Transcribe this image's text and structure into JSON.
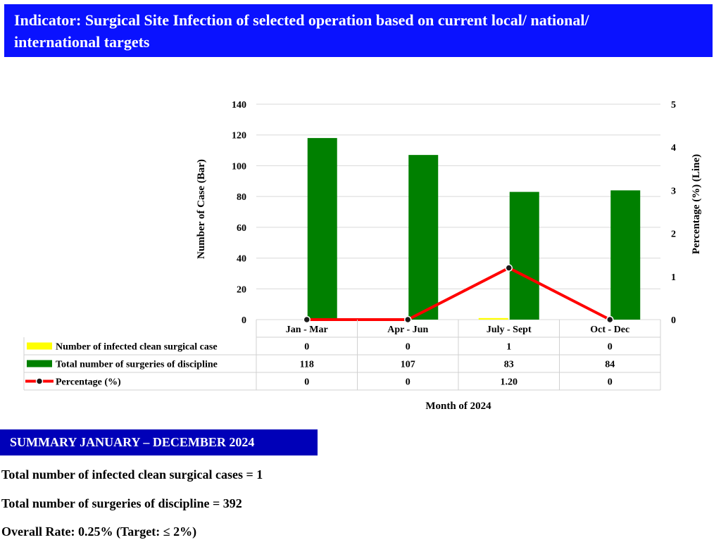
{
  "header": {
    "title_line1": "Indicator: Surgical Site Infection of selected operation based on current local/ national/",
    "title_line2": "international targets"
  },
  "chart_data": {
    "type": "bar",
    "categories": [
      "Jan - Mar",
      "Apr - Jun",
      "July - Sept",
      "Oct - Dec"
    ],
    "series": [
      {
        "name": "Number of infected clean surgical case",
        "kind": "bar",
        "axis": "left",
        "color": "#ffff00",
        "values": [
          0,
          0,
          1,
          0
        ],
        "labels": [
          "0",
          "0",
          "1",
          "0"
        ]
      },
      {
        "name": "Total number of surgeries of discipline",
        "kind": "bar",
        "axis": "left",
        "color": "#008000",
        "values": [
          118,
          107,
          83,
          84
        ],
        "labels": [
          "118",
          "107",
          "83",
          "84"
        ]
      },
      {
        "name": "Percentage (%)",
        "kind": "line",
        "axis": "right",
        "color": "#ff0000",
        "values": [
          0,
          0,
          1.2,
          0
        ],
        "labels": [
          "0",
          "0",
          "1.20",
          "0"
        ]
      }
    ],
    "y_left": {
      "label": "Number of Case (Bar)",
      "min": 0,
      "max": 140,
      "ticks": [
        0,
        20,
        40,
        60,
        80,
        100,
        120,
        140
      ]
    },
    "y_right": {
      "label": "Percentage (%) (Line)",
      "min": 0,
      "max": 5,
      "ticks": [
        0,
        1,
        2,
        3,
        4,
        5
      ]
    },
    "xlabel": "Month of 2024",
    "grid": true,
    "legend": "data-table"
  },
  "summary": {
    "title": "SUMMARY JANUARY – DECEMBER 2024",
    "line1": "Total number of infected clean surgical cases = 1",
    "line2": "Total number of surgeries of discipline = 392",
    "line3": "Overall Rate: 0.25% (Target: ≤ 2%)"
  }
}
